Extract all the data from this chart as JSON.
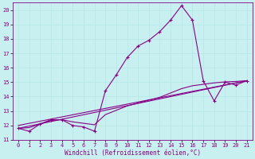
{
  "xlabel": "Windchill (Refroidissement éolien,°C)",
  "background_color": "#c8f0f0",
  "grid_color": "#b8e8e8",
  "line_color": "#880088",
  "xlim": [
    -0.5,
    21.5
  ],
  "ylim": [
    11,
    20.5
  ],
  "yticks": [
    11,
    12,
    13,
    14,
    15,
    16,
    17,
    18,
    19,
    20
  ],
  "xticks": [
    0,
    1,
    2,
    3,
    4,
    5,
    6,
    7,
    8,
    9,
    10,
    11,
    12,
    13,
    14,
    15,
    16,
    17,
    18,
    19,
    20,
    21
  ],
  "main_x": [
    0,
    1,
    2,
    3,
    4,
    5,
    6,
    7,
    8,
    9,
    10,
    11,
    12,
    13,
    14,
    15,
    16,
    17,
    18,
    19,
    20,
    21
  ],
  "main_y": [
    11.8,
    11.6,
    12.1,
    12.4,
    12.4,
    12.0,
    11.9,
    11.6,
    14.4,
    15.5,
    16.7,
    17.5,
    17.9,
    18.5,
    19.3,
    20.3,
    19.3,
    15.1,
    13.7,
    15.0,
    14.8,
    15.1
  ],
  "trend1_x": [
    0,
    21
  ],
  "trend1_y": [
    11.8,
    15.1
  ],
  "smooth_x": [
    0,
    1,
    2,
    3,
    4,
    5,
    6,
    7,
    8,
    9,
    10,
    11,
    12,
    13,
    14,
    15,
    16,
    17,
    18,
    19,
    20,
    21
  ],
  "smooth_y": [
    11.8,
    11.85,
    12.1,
    12.35,
    12.4,
    12.25,
    12.15,
    12.05,
    12.75,
    13.05,
    13.35,
    13.55,
    13.75,
    13.95,
    14.25,
    14.55,
    14.75,
    14.85,
    14.95,
    15.02,
    15.05,
    15.1
  ],
  "trend2_x": [
    0,
    21
  ],
  "trend2_y": [
    12.0,
    15.1
  ]
}
